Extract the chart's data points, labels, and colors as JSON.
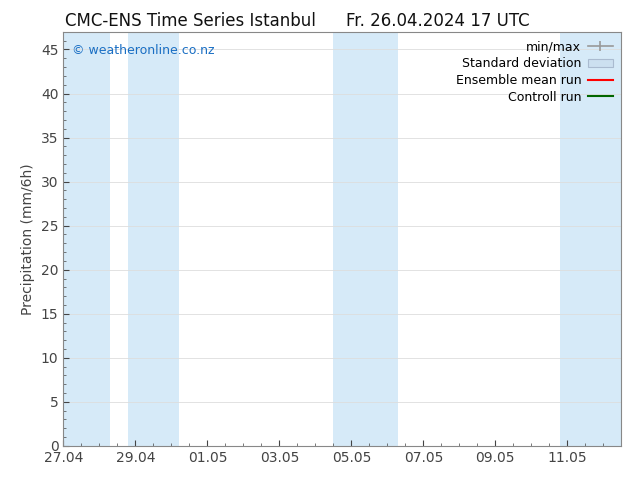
{
  "title": "CMC-ENS Time Series Istanbul",
  "title_right": "Fr. 26.04.2024 17 UTC",
  "ylabel": "Precipitation (mm/6h)",
  "watermark": "© weatheronline.co.nz",
  "watermark_color": "#1a6fc4",
  "ylim": [
    0,
    47
  ],
  "yticks": [
    0,
    5,
    10,
    15,
    20,
    25,
    30,
    35,
    40,
    45
  ],
  "xtick_labels": [
    "27.04",
    "29.04",
    "01.05",
    "03.05",
    "05.05",
    "07.05",
    "09.05",
    "11.05"
  ],
  "xtick_positions": [
    0,
    2,
    4,
    6,
    8,
    10,
    12,
    14
  ],
  "xlim": [
    0,
    15.5
  ],
  "shade_bands": [
    {
      "start": -0.1,
      "end": 1.3,
      "color": "#d6eaf8"
    },
    {
      "start": 1.8,
      "end": 3.2,
      "color": "#d6eaf8"
    },
    {
      "start": 7.5,
      "end": 9.3,
      "color": "#d6eaf8"
    },
    {
      "start": 13.8,
      "end": 15.6,
      "color": "#d6eaf8"
    }
  ],
  "bg_color": "#ffffff",
  "plot_bg_color": "#ffffff",
  "grid_color": "#dddddd",
  "tick_color": "#444444",
  "border_color": "#888888",
  "font_size": 10,
  "title_font_size": 12,
  "legend_font_size": 9,
  "minmax_color": "#999999",
  "std_face_color": "#cce0f0",
  "std_edge_color": "#aabbd0",
  "ensemble_color": "#ff0000",
  "control_color": "#006600"
}
